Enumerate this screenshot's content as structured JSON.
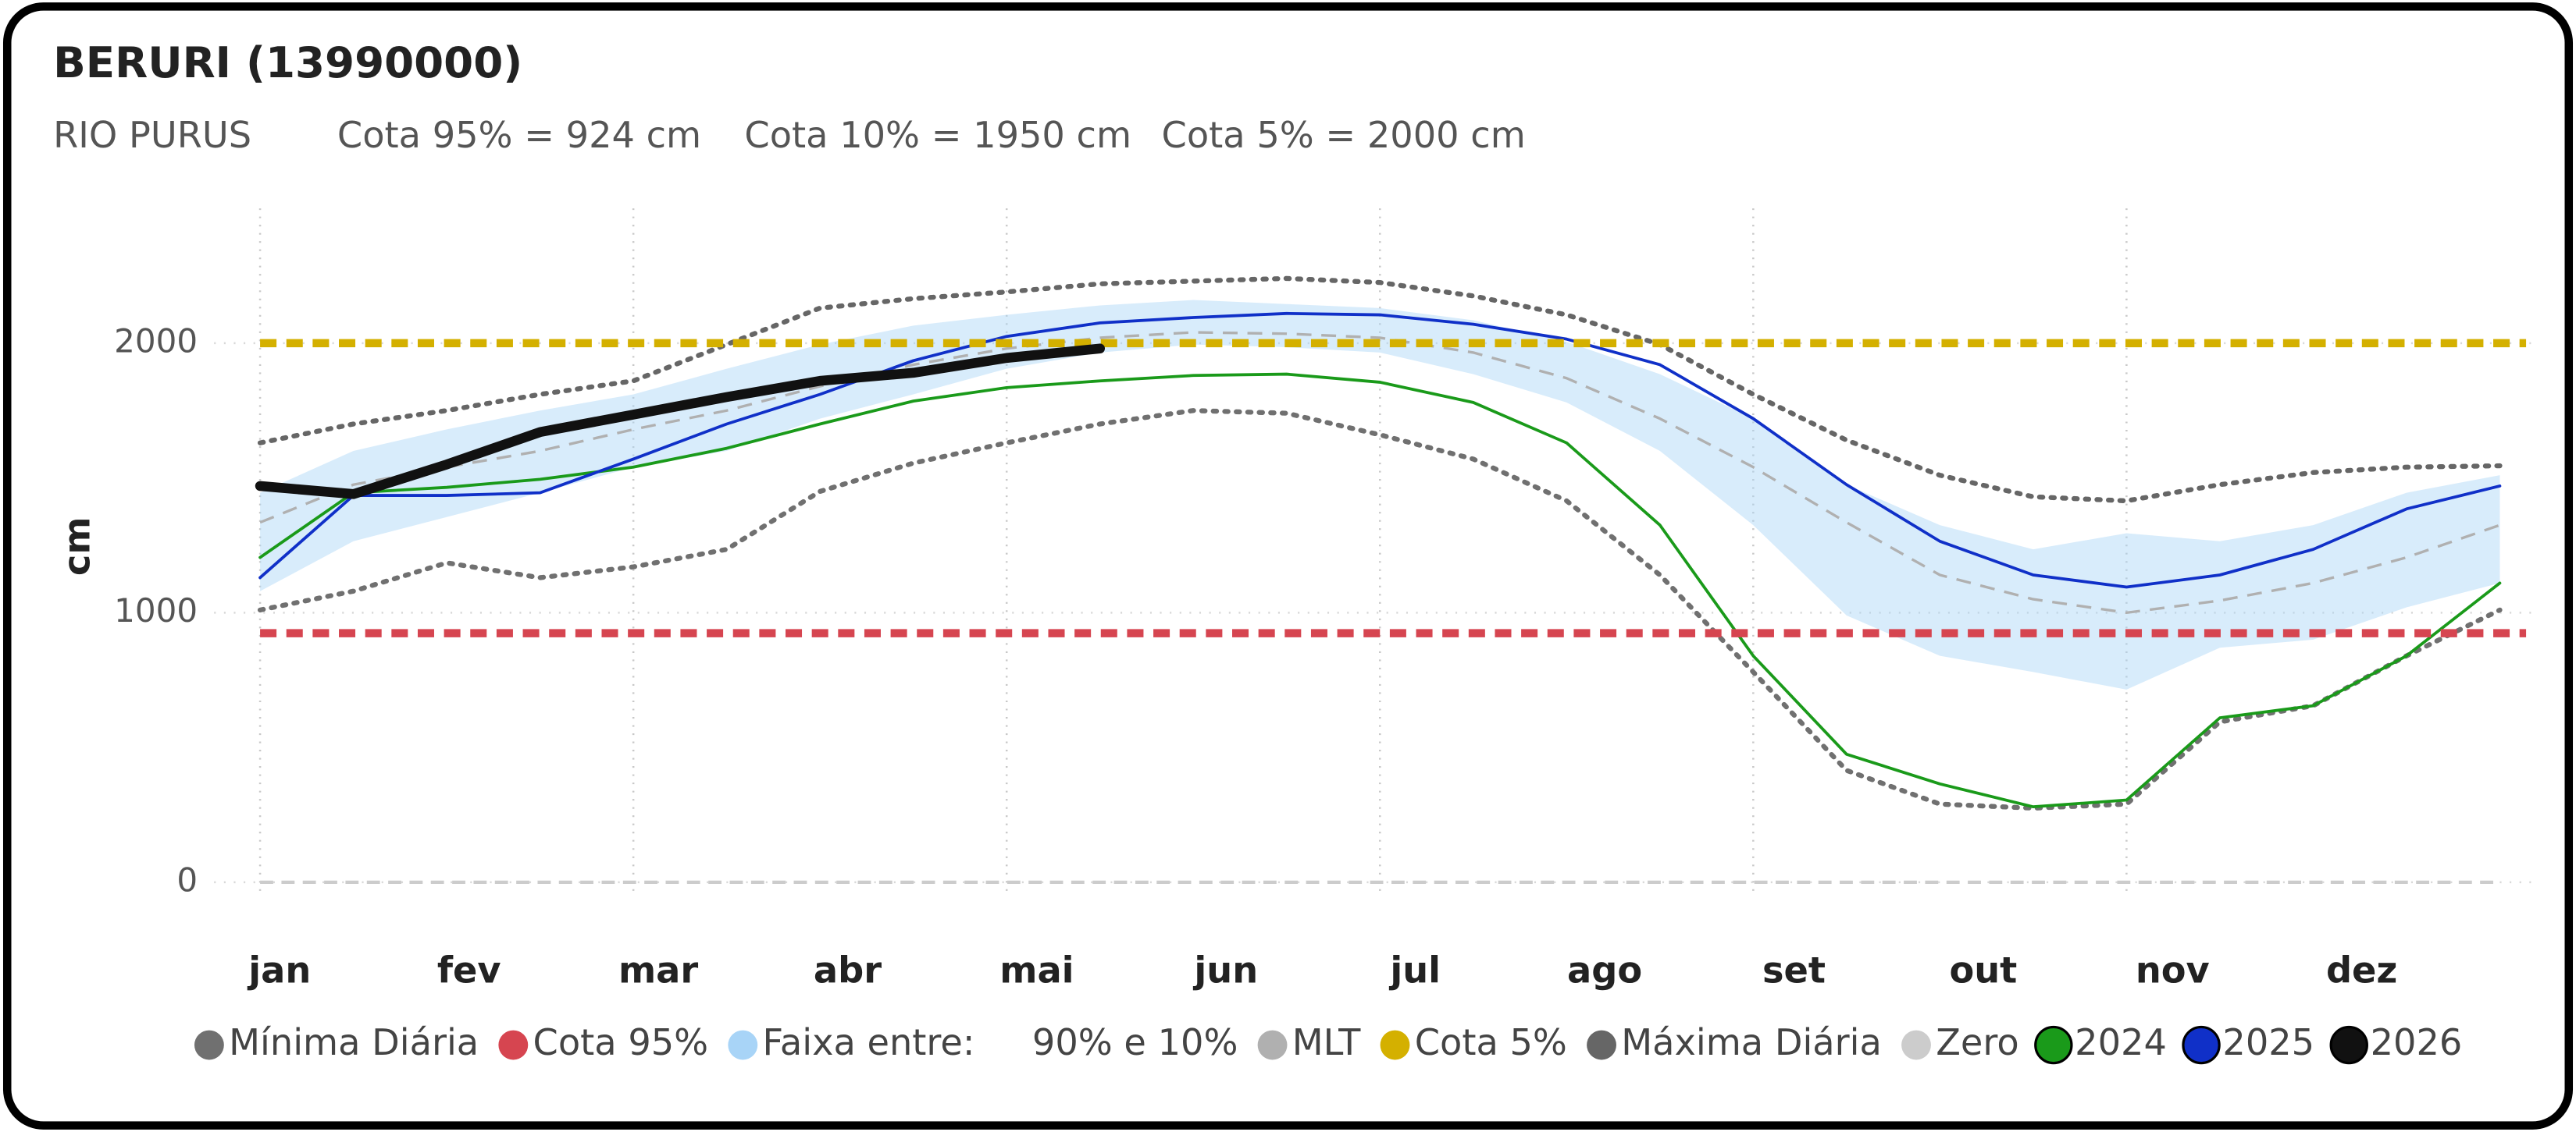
{
  "chart_data": {
    "type": "line",
    "title": "BERURI (13990000)",
    "subtitle": "RIO PURUS",
    "annotations": [
      "Cota 95% = 924 cm",
      "Cota 10% = 1950 cm",
      "Cota 5% = 2000 cm"
    ],
    "y_label": "cm",
    "categories": [
      "jan",
      null,
      "fev",
      null,
      "mar",
      null,
      "abr",
      null,
      "mai",
      null,
      "jun",
      null,
      "jul",
      null,
      "ago",
      null,
      "set",
      null,
      "out",
      null,
      "nov",
      null,
      "dez",
      null,
      null
    ],
    "ylim": [
      -50,
      2500
    ],
    "yticks": [
      0,
      1000,
      2000
    ],
    "series": [
      {
        "name": "Mínima Diária",
        "color": "#707070",
        "style": "dotted",
        "values": [
          1010,
          1080,
          1185,
          1130,
          1170,
          1235,
          1450,
          1555,
          1630,
          1700,
          1750,
          1740,
          1660,
          1570,
          1415,
          1140,
          780,
          415,
          290,
          275,
          290,
          595,
          655,
          840,
          1010
        ]
      },
      {
        "name": "Cota 95%",
        "color": "#d64550",
        "style": "hline",
        "value": 924
      },
      {
        "name": "Faixa entre:     90% e 10%",
        "color": "#a8d4f7",
        "style": "band",
        "upper": [
          1445,
          1600,
          1680,
          1750,
          1810,
          1905,
          1995,
          2065,
          2105,
          2140,
          2160,
          2145,
          2130,
          2085,
          2005,
          1885,
          1720,
          1475,
          1325,
          1235,
          1295,
          1265,
          1325,
          1445,
          1510
        ],
        "lower": [
          1080,
          1265,
          1355,
          1445,
          1540,
          1600,
          1720,
          1810,
          1905,
          1965,
          1995,
          1985,
          1965,
          1885,
          1780,
          1600,
          1325,
          990,
          840,
          780,
          715,
          870,
          900,
          1020,
          1110
        ]
      },
      {
        "name": "MLT",
        "color": "#b0b0b0",
        "style": "dashed",
        "values": [
          1335,
          1475,
          1540,
          1600,
          1680,
          1750,
          1840,
          1920,
          1980,
          2020,
          2040,
          2035,
          2020,
          1965,
          1870,
          1720,
          1540,
          1335,
          1140,
          1050,
          1000,
          1045,
          1110,
          1205,
          1325
        ]
      },
      {
        "name": "Cota 5%",
        "color": "#d4b000",
        "style": "hline",
        "value": 2000
      },
      {
        "name": "Máxima Diária",
        "color": "#666666",
        "style": "dotted",
        "values": [
          1630,
          1700,
          1750,
          1810,
          1860,
          1995,
          2130,
          2165,
          2190,
          2220,
          2230,
          2240,
          2225,
          2175,
          2105,
          1995,
          1810,
          1640,
          1510,
          1430,
          1415,
          1475,
          1520,
          1540,
          1545
        ]
      },
      {
        "name": "Zero",
        "color": "#cccccc",
        "style": "zero",
        "value": 0
      },
      {
        "name": "2024",
        "color": "#1a9a1a",
        "style": "solid",
        "values": [
          1205,
          1445,
          1465,
          1495,
          1540,
          1610,
          1700,
          1785,
          1835,
          1860,
          1880,
          1885,
          1855,
          1780,
          1630,
          1325,
          840,
          475,
          365,
          280,
          305,
          610,
          655,
          840,
          1110
        ]
      },
      {
        "name": "2025",
        "color": "#1030c8",
        "style": "solid",
        "values": [
          1130,
          1435,
          1435,
          1445,
          1570,
          1700,
          1810,
          1935,
          2025,
          2075,
          2095,
          2110,
          2105,
          2070,
          2015,
          1920,
          1720,
          1475,
          1265,
          1140,
          1095,
          1140,
          1235,
          1385,
          1470
        ]
      },
      {
        "name": "2026",
        "color": "#111111",
        "style": "bold",
        "values": [
          1470,
          1440,
          1550,
          1670,
          1735,
          1800,
          1860,
          1890,
          1945,
          1980,
          null,
          null,
          null,
          null,
          null,
          null,
          null,
          null,
          null,
          null,
          null,
          null,
          null,
          null,
          null
        ]
      }
    ]
  }
}
